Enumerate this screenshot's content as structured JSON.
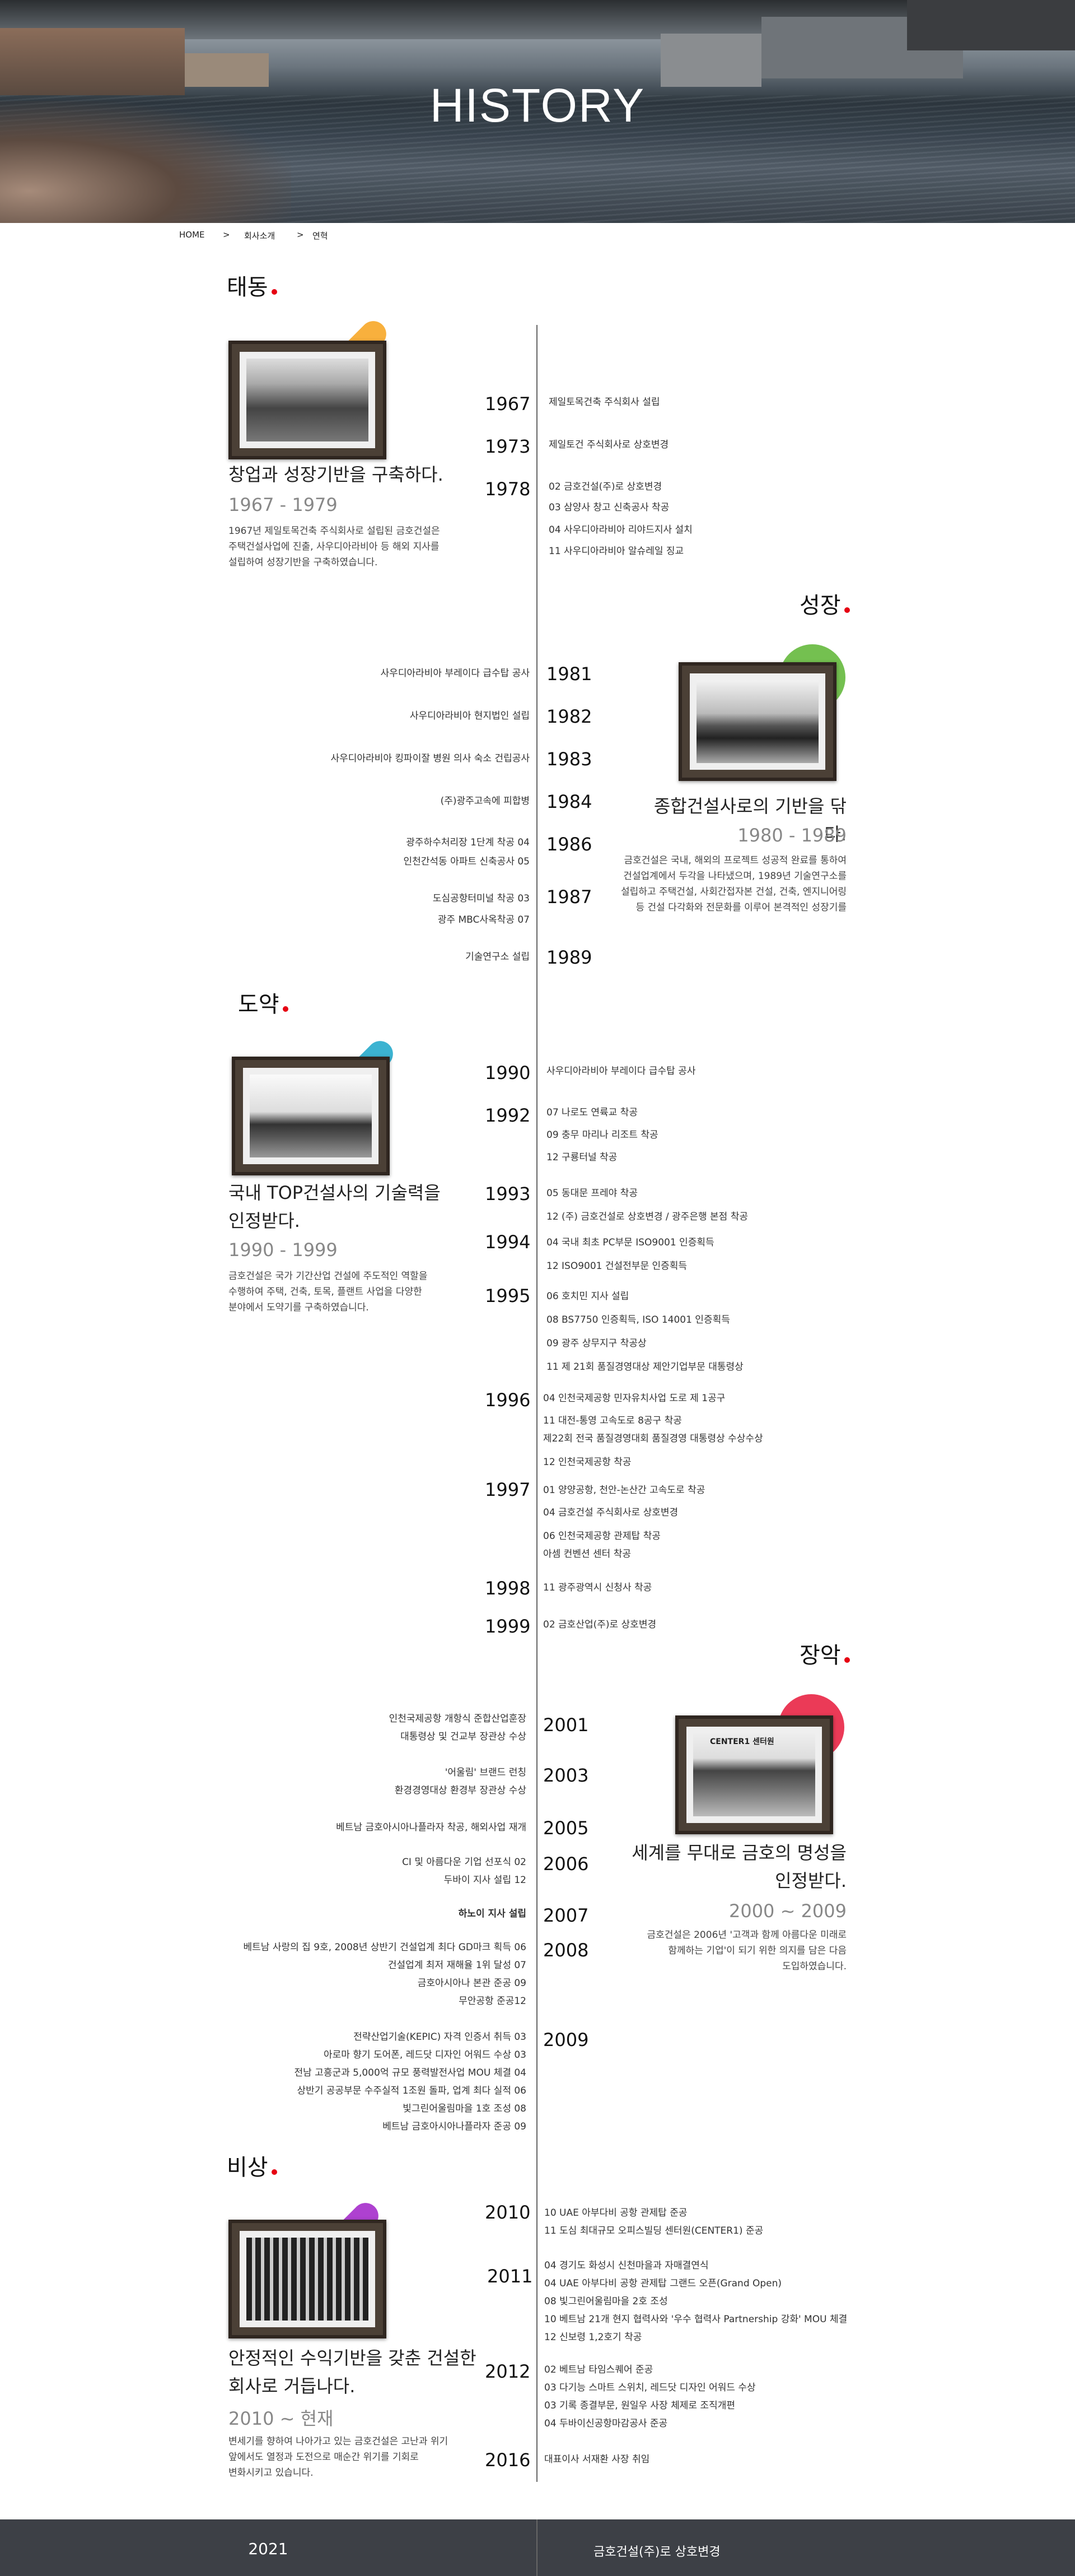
{
  "hero": {
    "title": "HISTORY"
  },
  "breadcrumb": {
    "home": "HOME",
    "sep1": ">",
    "item1": "회사소개",
    "sep2": ">",
    "item2": "연혁"
  },
  "eras": {
    "e1": {
      "name": "태동",
      "title_line1": "창업과 성장기반을 구축하다.",
      "range": "1967 - 1979",
      "desc": [
        "1967년 제일토목건축 주식회사로 설립된 금호건설은",
        "주택건설사업에 진출, 사우디아라비아 등 해외 지사를",
        "설립하여 성장기반을 구축하였습니다."
      ],
      "accent_color": "#f7a21b",
      "years": [
        {
          "year": "1967",
          "events": [
            "제일토목건축 주식회사 설립"
          ]
        },
        {
          "year": "1973",
          "events": [
            "제일토건 주식회사로 상호변경"
          ]
        },
        {
          "year": "1978",
          "events": [
            "02 금호건설(주)로 상호변경",
            "03 삼양사 창고 신축공사 착공",
            "04 사우디아라비아 리야드지사 설치",
            "11 사우디아라비아 알슈레일 징교"
          ]
        }
      ]
    },
    "e2": {
      "name": "성장",
      "title_line1": "종합건설사로의 기반을 닦다.",
      "range": "1980 - 1989",
      "desc": [
        "금호건설은 국내, 해외의 프로젝트 성공적 완료를 통하여",
        "건설업계에서 두각을 나타냈으며, 1989년 기술연구소를",
        "설립하고 주택건설, 사회간접자본 건설, 건축, 엔지니어링",
        "등 건설 다각화와 전문화를 이루어 본격적인 성장기를"
      ],
      "accent_color": "#5cb531",
      "years": [
        {
          "year": "1981",
          "events": [
            "사우디아라비아 부레이다 급수탑 공사"
          ]
        },
        {
          "year": "1982",
          "events": [
            "사우디아라비아 현지법인 설립"
          ]
        },
        {
          "year": "1983",
          "events": [
            "사우디아라비아 킹파이잘 병원 의사 숙소 건립공사"
          ]
        },
        {
          "year": "1984",
          "events": [
            "(주)광주고속에 피합병"
          ]
        },
        {
          "year": "1986",
          "events": [
            "광주하수처리장 1단계 착공 04",
            "인천간석동 아파트 신축공사 05"
          ]
        },
        {
          "year": "1987",
          "events": [
            "도심공항터미널 착공 03",
            "광주 MBC사옥착공 07"
          ]
        },
        {
          "year": "1989",
          "events": [
            "기술연구소 설립"
          ]
        }
      ]
    },
    "e3": {
      "name": "도약",
      "title_line1": "국내 TOP건설사의 기술력을",
      "title_line2": "인정받다.",
      "range": "1990 - 1999",
      "desc": [
        "금호건설은 국가 기간산업 건설에 주도적인 역할을",
        "수행하여 주택, 건축, 토목, 플랜트 사업을 다양한",
        "분야에서 도약기를 구축하였습니다."
      ],
      "accent_color": "#1aa6c9",
      "years": [
        {
          "year": "1990",
          "events": [
            "사우디아라비아 부레이다 급수탑 공사"
          ]
        },
        {
          "year": "1992",
          "events": [
            "07 나로도 연륙교 착공",
            "09 충무 마리나 리조트 착공",
            "12 구룡터널 착공"
          ]
        },
        {
          "year": "1993",
          "events": [
            "05 동대문 프레야 착공",
            "12 (주) 금호건설로 상호변경 / 광주은행 본점 착공"
          ]
        },
        {
          "year": "1994",
          "events": [
            "04 국내 최초 PC부문 ISO9001 인증획득",
            "12 ISO9001 건설전부문 인증획득"
          ]
        },
        {
          "year": "1995",
          "events": [
            "06 호치민 지사 설립",
            "08 BS7750 인증획득, ISO 14001 인증획득",
            "09 광주 상무지구 착공상",
            "11 제 21회 품질경영대상 제안기업부문 대통령상"
          ]
        },
        {
          "year": "1996",
          "events": [
            "04 인천국제공항 민자유치사업 도로 제 1공구",
            "11 대전-통영 고속도로 8공구 착공",
            "     제22회 전국 품질경영대회 품질경영 대통령상 수상수상",
            "12 인천국제공항 착공"
          ]
        },
        {
          "year": "1997",
          "events": [
            "01 양양공항, 천안-논산간 고속도로 착공",
            "04 금호건설 주식회사로 상호변경",
            "06 인천국제공항 관제탑 착공",
            "     아셈 컨벤션 센터 착공"
          ]
        },
        {
          "year": "1998",
          "events": [
            "11 광주광역시 신청사 착공"
          ]
        },
        {
          "year": "1999",
          "events": [
            "02 금호산업(주)로 상호변경"
          ]
        }
      ]
    },
    "e4": {
      "name": "장악",
      "title_line1": "세계를 무대로 금호의 명성을",
      "title_line2": "인정받다.",
      "range": "2000 ~ 2009",
      "desc": [
        "금호건설은 2006년 '고객과 함께 아름다운 미래로",
        "함께하는 기업'이 되기 위한 의지를 담은 다음",
        "도입하였습니다."
      ],
      "accent_color": "#e8173a",
      "years": [
        {
          "year": "2001",
          "events": [
            "인천국제공항 개항식 준합산업훈장",
            "대통령상 및 건교부 장관상 수상"
          ]
        },
        {
          "year": "2003",
          "events": [
            "'어울림' 브랜드 런칭",
            "환경경영대상 환경부 장관상 수상"
          ]
        },
        {
          "year": "2005",
          "events": [
            "베트남 금호아시아나플라자 착공, 해외사업 재개"
          ]
        },
        {
          "year": "2006",
          "events": [
            "CI 및 아름다운 기업 선포식 02",
            "두바이 지사 설립 12"
          ]
        },
        {
          "year": "2007",
          "events": [
            "하노이 지사 설립"
          ]
        },
        {
          "year": "2008",
          "events": [
            "베트남 사랑의 집 9호, 2008년 상반기 건설업계 최다 GD마크 획득 06",
            "건설업계 최저 재해율 1위 달성 07",
            "금호아시아나 본관 준공 09",
            "무안공항 준공12"
          ]
        },
        {
          "year": "2009",
          "events": [
            "전략산업기술(KEPIC) 자격 인증서 취득 03",
            "아로마 향기 도어폰, 레드닷 디자인 어워드 수상 03",
            "전남 고흥군과 5,000억 규모 풍력발전사업 MOU 체결 04",
            "상반기 공공부문 수주실적 1조원 돌파, 업계 최다 실적 06",
            "빛그린어울림마을 1호 조성 08",
            "베트남 금호아시아나플라자 준공 09"
          ]
        }
      ]
    },
    "e5": {
      "name": "비상",
      "title_line1": "안정적인 수익기반을 갖춘 건설한",
      "title_line2": "회사로 거듭나다.",
      "range": "2010 ~ 현재",
      "desc": [
        "변세기를 향하여 나아가고 있는 금호건설은 고난과 위기",
        "앞에서도 열정과 도전으로 매순간 위기를 기회로",
        "변화시키고 있습니다."
      ],
      "accent_color": "#a020c8",
      "years": [
        {
          "year": "2010",
          "events": [
            "10 UAE 아부다비 공항 관제탑 준공",
            "11 도심 최대규모 오피스빌딩 센터원(CENTER1) 준공"
          ]
        },
        {
          "year": "2011",
          "events": [
            "04 경기도 화성시 신천마을과 자매결연식",
            "04 UAE 아부다비 공항 관제탑 그랜드 오픈(Grand Open)",
            "08 빛그린어울림마을 2호 조성",
            "10 베트남 21개 현지 협력사와 '우수 협력사 Partnership 강화' MOU 체결",
            "12 신보령 1,2호기 착공"
          ]
        },
        {
          "year": "2012",
          "events": [
            "02 베트남 타임스퀘어 준공",
            "03 다기능 스마트 스위치, 레드닷 디자인 어워드 수상",
            "03 기록 종결부문, 원일우 사장 체제로 조직개편",
            "04 두바이신공항마감공사 준공"
          ]
        },
        {
          "year": "2016",
          "events": [
            "대표이사 서재환 사장 취임"
          ]
        }
      ]
    }
  },
  "photo_caption": "CENTER1 센터원",
  "footer": {
    "year": "2021",
    "event": "금호건설(주)로 상호변경"
  }
}
